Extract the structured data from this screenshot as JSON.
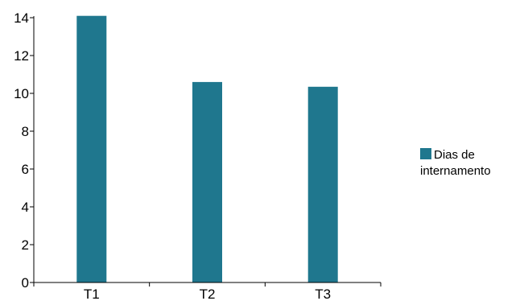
{
  "chart_data": {
    "type": "bar",
    "categories": [
      "T1",
      "T2",
      "T3"
    ],
    "series": [
      {
        "name": "Dias de internamento",
        "values": [
          14.1,
          10.6,
          10.35
        ],
        "color": "#1f778e"
      }
    ],
    "ylim": [
      0,
      14
    ],
    "yticks": [
      "0",
      "2",
      "4",
      "6",
      "8",
      "10",
      "12",
      "14"
    ],
    "grid": false,
    "legend_position": "right"
  }
}
